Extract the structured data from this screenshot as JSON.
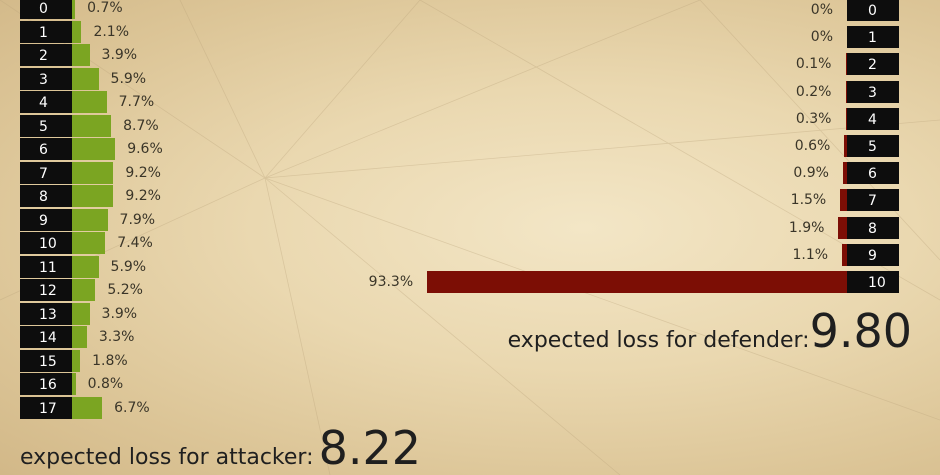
{
  "chart_data": [
    {
      "type": "bar",
      "orientation": "horizontal",
      "categories": [
        "0",
        "1",
        "2",
        "3",
        "4",
        "5",
        "6",
        "7",
        "8",
        "9",
        "10",
        "11",
        "12",
        "13",
        "14",
        "15",
        "16",
        "17"
      ],
      "values": [
        0.7,
        2.1,
        3.9,
        5.9,
        7.7,
        8.7,
        9.6,
        9.2,
        9.2,
        7.9,
        7.4,
        5.9,
        5.2,
        3.9,
        3.3,
        1.8,
        0.8,
        6.7
      ],
      "labels": [
        "0.7%",
        "2.1%",
        "3.9%",
        "5.9%",
        "7.7%",
        "8.7%",
        "9.6%",
        "9.2%",
        "9.2%",
        "7.9%",
        "7.4%",
        "5.9%",
        "5.2%",
        "3.9%",
        "3.3%",
        "1.8%",
        "0.8%",
        "6.7%"
      ],
      "color": "#7ba522",
      "summary_label": "expected loss for attacker:",
      "summary_value": "8.22"
    },
    {
      "type": "bar",
      "orientation": "horizontal",
      "categories": [
        "0",
        "1",
        "2",
        "3",
        "4",
        "5",
        "6",
        "7",
        "8",
        "9",
        "10"
      ],
      "values": [
        0,
        0,
        0.1,
        0.2,
        0.3,
        0.6,
        0.9,
        1.5,
        1.9,
        1.1,
        93.3
      ],
      "labels": [
        "0%",
        "0%",
        "0.1%",
        "0.2%",
        "0.3%",
        "0.6%",
        "0.9%",
        "1.5%",
        "1.9%",
        "1.1%",
        "93.3%"
      ],
      "color": "#7c0e05",
      "summary_label": "expected loss for defender:",
      "summary_value": "9.80"
    }
  ]
}
